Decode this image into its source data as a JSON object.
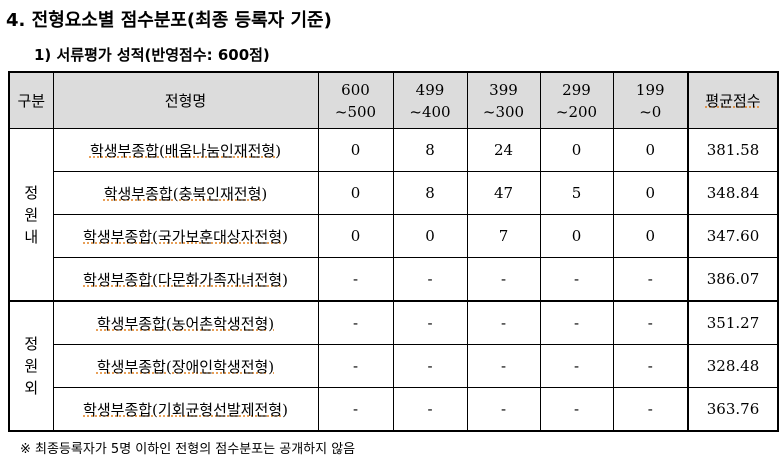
{
  "title": "4. 전형요소별 점수분포(최종 등록자 기준)",
  "subtitle": "1) 서류평가 성적(반영점수: 600점)",
  "headers": {
    "category": "구분",
    "name": "전형명",
    "ranges": [
      [
        "600",
        "~500"
      ],
      [
        "499",
        "~400"
      ],
      [
        "399",
        "~300"
      ],
      [
        "299",
        "~200"
      ],
      [
        "199",
        "~0"
      ]
    ],
    "avg": "평균점수"
  },
  "groups": [
    {
      "label": [
        "정",
        "원",
        "내"
      ],
      "rows": [
        {
          "name": "학생부종합(배움나눔인재전형)",
          "values": [
            "0",
            "8",
            "24",
            "0",
            "0"
          ],
          "avg": "381.58"
        },
        {
          "name": "학생부종합(충북인재전형)",
          "values": [
            "0",
            "8",
            "47",
            "5",
            "0"
          ],
          "avg": "348.84"
        },
        {
          "name": "학생부종합(국가보훈대상자전형)",
          "values": [
            "0",
            "0",
            "7",
            "0",
            "0"
          ],
          "avg": "347.60"
        },
        {
          "name": "학생부종합(다문화가족자녀전형)",
          "values": [
            "-",
            "-",
            "-",
            "-",
            "-"
          ],
          "avg": "386.07"
        }
      ]
    },
    {
      "label": [
        "정",
        "원",
        "외"
      ],
      "rows": [
        {
          "name": "학생부종합(농어촌학생전형)",
          "values": [
            "-",
            "-",
            "-",
            "-",
            "-"
          ],
          "avg": "351.27"
        },
        {
          "name": "학생부종합(장애인학생전형)",
          "values": [
            "-",
            "-",
            "-",
            "-",
            "-"
          ],
          "avg": "328.48"
        },
        {
          "name": "학생부종합(기회균형선발제전형)",
          "values": [
            "-",
            "-",
            "-",
            "-",
            "-"
          ],
          "avg": "363.76"
        }
      ]
    }
  ],
  "footnote": "※ 최종등록자가 5명 이하인 전형의 점수분포는 공개하지 않음"
}
